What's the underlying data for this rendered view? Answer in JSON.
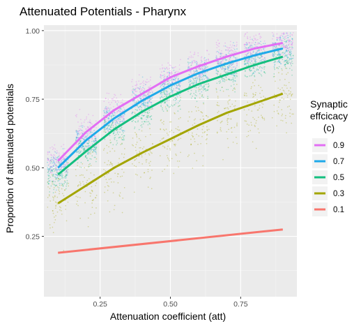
{
  "chart_data": {
    "type": "scatter",
    "title": "Attenuated Potentials - Pharynx",
    "xlabel": "Attenuation coefficient (att)",
    "ylabel": "Proportion of attenuated potentials",
    "xlim": [
      0.05,
      0.95
    ],
    "ylim": [
      0.03,
      1.02
    ],
    "x_ticks": [
      0.25,
      0.5,
      0.75
    ],
    "x_tick_labels": [
      "0.25",
      "0.50",
      "0.75"
    ],
    "y_ticks": [
      0.25,
      0.5,
      0.75,
      1.0
    ],
    "y_tick_labels": [
      "0.25",
      "0.50",
      "0.75",
      "1.00"
    ],
    "grid": true,
    "panel_background": "#ebebeb",
    "legend": {
      "title_lines": [
        "Synaptic",
        "effcicacy",
        "(c)"
      ],
      "position": "right",
      "entries": [
        {
          "label": "0.9",
          "color": "#e36ef4"
        },
        {
          "label": "0.7",
          "color": "#1fa9e9"
        },
        {
          "label": "0.5",
          "color": "#14bf7f"
        },
        {
          "label": "0.3",
          "color": "#a3a500"
        },
        {
          "label": "0.1",
          "color": "#f8766d"
        }
      ]
    },
    "scatter_x_groups": [
      0.1,
      0.2,
      0.3,
      0.4,
      0.5,
      0.6,
      0.7,
      0.8,
      0.9
    ],
    "series": [
      {
        "name": "0.9",
        "color": "#e36ef4",
        "x": [
          0.1,
          0.2,
          0.3,
          0.4,
          0.5,
          0.6,
          0.7,
          0.8,
          0.9
        ],
        "y": [
          0.525,
          0.63,
          0.71,
          0.77,
          0.83,
          0.87,
          0.905,
          0.935,
          0.955
        ]
      },
      {
        "name": "0.7",
        "color": "#1fa9e9",
        "x": [
          0.1,
          0.2,
          0.3,
          0.4,
          0.5,
          0.6,
          0.7,
          0.8,
          0.9
        ],
        "y": [
          0.5,
          0.6,
          0.68,
          0.745,
          0.8,
          0.845,
          0.88,
          0.91,
          0.935
        ]
      },
      {
        "name": "0.5",
        "color": "#14bf7f",
        "x": [
          0.1,
          0.2,
          0.3,
          0.4,
          0.5,
          0.6,
          0.7,
          0.8,
          0.9
        ],
        "y": [
          0.475,
          0.56,
          0.64,
          0.705,
          0.76,
          0.805,
          0.84,
          0.875,
          0.905
        ]
      },
      {
        "name": "0.3",
        "color": "#a3a500",
        "x": [
          0.1,
          0.2,
          0.3,
          0.4,
          0.5,
          0.6,
          0.7,
          0.8,
          0.9
        ],
        "y": [
          0.37,
          0.435,
          0.5,
          0.555,
          0.605,
          0.655,
          0.7,
          0.735,
          0.77
        ]
      },
      {
        "name": "0.1",
        "color": "#f8766d",
        "x": [
          0.1,
          0.9
        ],
        "y": [
          0.19,
          0.275
        ]
      }
    ]
  }
}
